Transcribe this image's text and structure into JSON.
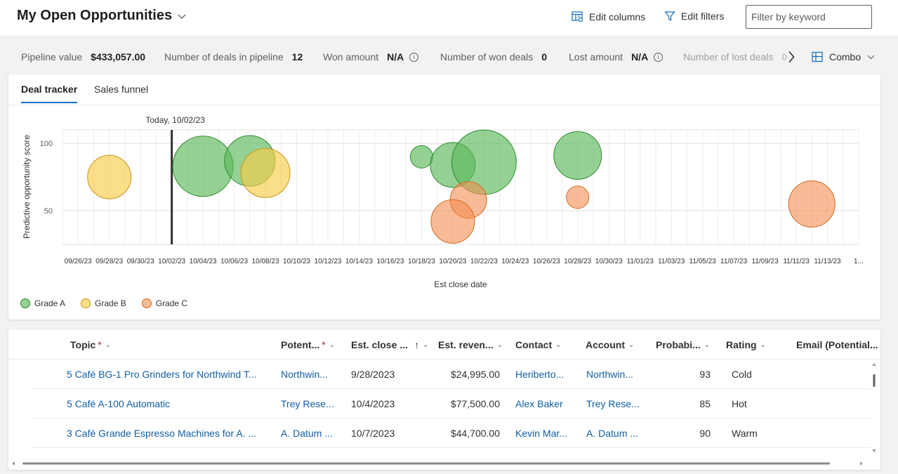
{
  "header": {
    "title": "My Open Opportunities",
    "edit_columns": "Edit columns",
    "edit_filters": "Edit filters",
    "filter_placeholder": "Filter by keyword"
  },
  "metrics": {
    "pipeline_value_label": "Pipeline value",
    "pipeline_value": "$433,057.00",
    "deals_label": "Number of deals in pipeline",
    "deals": "12",
    "won_amount_label": "Won amount",
    "won_amount": "N/A",
    "won_deals_label": "Number of won deals",
    "won_deals": "0",
    "lost_amount_label": "Lost amount",
    "lost_amount": "N/A",
    "lost_deals_label": "Number of lost deals",
    "lost_deals": "0"
  },
  "view_switch": {
    "label": "Combo"
  },
  "tabs": [
    {
      "label": "Deal tracker",
      "active": true
    },
    {
      "label": "Sales funnel",
      "active": false
    }
  ],
  "chart_data": {
    "type": "scatter",
    "subtype": "bubble",
    "today_label": "Today, 10/02/23",
    "today": "10/02/23",
    "xlabel": "Est close date",
    "ylabel": "Predictive opportunity score",
    "yticks": [
      100,
      50
    ],
    "ylim": [
      25,
      110
    ],
    "xticks": [
      "09/26/23",
      "09/28/23",
      "09/30/23",
      "10/02/23",
      "10/04/23",
      "10/06/23",
      "10/08/23",
      "10/10/23",
      "10/12/23",
      "10/14/23",
      "10/16/23",
      "10/18/23",
      "10/20/23",
      "10/22/23",
      "10/24/23",
      "10/26/23",
      "10/28/23",
      "10/30/23",
      "11/01/23",
      "11/03/23",
      "11/05/23",
      "11/07/23",
      "11/09/23",
      "11/11/23",
      "11/13/23",
      "1..."
    ],
    "grid": true,
    "legend_position": "bottom-left",
    "series": [
      {
        "name": "Grade A",
        "color": "#5cb85c",
        "fill": "rgba(92,184,92,0.65)",
        "stroke": "#2e8b2e",
        "points": [
          {
            "x": "10/04/23",
            "y": 83,
            "size": 43
          },
          {
            "x": "10/07/23",
            "y": 87,
            "size": 36
          },
          {
            "x": "10/18/23",
            "y": 90,
            "size": 16
          },
          {
            "x": "10/20/23",
            "y": 84,
            "size": 32
          },
          {
            "x": "10/22/23",
            "y": 86,
            "size": 46
          },
          {
            "x": "10/28/23",
            "y": 91,
            "size": 34
          }
        ]
      },
      {
        "name": "Grade B",
        "color": "#f5c542",
        "fill": "rgba(248,204,72,0.65)",
        "stroke": "#c8941a",
        "points": [
          {
            "x": "09/28/23",
            "y": 75,
            "size": 31
          },
          {
            "x": "10/08/23",
            "y": 78,
            "size": 35
          }
        ]
      },
      {
        "name": "Grade C",
        "color": "#f4a167",
        "fill": "rgba(245,141,82,0.6)",
        "stroke": "#d2691e",
        "points": [
          {
            "x": "10/21/23",
            "y": 58,
            "size": 26
          },
          {
            "x": "10/20/23",
            "y": 42,
            "size": 31
          },
          {
            "x": "10/28/23",
            "y": 60,
            "size": 16
          },
          {
            "x": "11/12/23",
            "y": 55,
            "size": 33
          }
        ]
      }
    ]
  },
  "grid": {
    "columns": [
      {
        "label": "Topic",
        "required": true,
        "sort": ""
      },
      {
        "label": "Potent...",
        "required": true,
        "sort": ""
      },
      {
        "label": "Est. close ...",
        "required": false,
        "sort": "asc"
      },
      {
        "label": "Est. reven...",
        "required": false,
        "sort": ""
      },
      {
        "label": "Contact",
        "required": false,
        "sort": ""
      },
      {
        "label": "Account",
        "required": false,
        "sort": ""
      },
      {
        "label": "Probabi...",
        "required": false,
        "sort": ""
      },
      {
        "label": "Rating",
        "required": false,
        "sort": ""
      },
      {
        "label": "Email (Potential...",
        "required": false,
        "sort": ""
      }
    ],
    "rows": [
      {
        "topic": "5 Café BG-1 Pro Grinders for Northwind T...",
        "potential": "Northwin...",
        "close": "9/28/2023",
        "revenue": "$24,995.00",
        "contact": "Heriberto...",
        "account": "Northwin...",
        "probability": "93",
        "rating": "Cold",
        "email": ""
      },
      {
        "topic": "5 Café A-100 Automatic",
        "potential": "Trey Rese...",
        "close": "10/4/2023",
        "revenue": "$77,500.00",
        "contact": "Alex Baker",
        "account": "Trey Rese...",
        "probability": "85",
        "rating": "Hot",
        "email": ""
      },
      {
        "topic": "3 Café Grande Espresso Machines for A. ...",
        "potential": "A. Datum ...",
        "close": "10/7/2023",
        "revenue": "$44,700.00",
        "contact": "Kevin Mar...",
        "account": "A. Datum ...",
        "probability": "90",
        "rating": "Warm",
        "email": ""
      }
    ]
  }
}
